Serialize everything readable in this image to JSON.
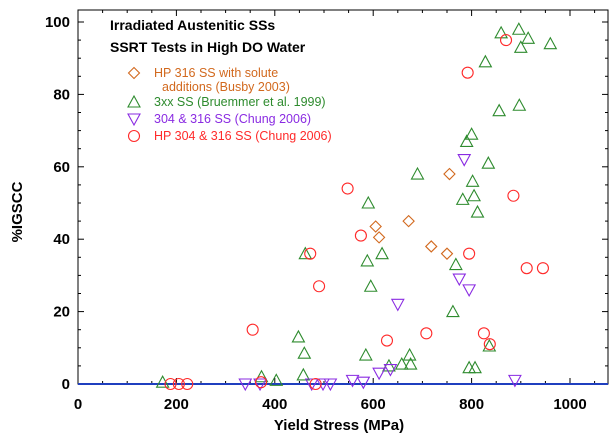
{
  "chart_data": {
    "type": "scatter",
    "title_lines": [
      "Irradiated Austenitic SSs",
      "SSRT Tests in High DO Water"
    ],
    "xlabel": "Yield Stress (MPa)",
    "ylabel": "%IGSCC",
    "xlim": [
      0,
      1100
    ],
    "ylim": [
      0,
      105
    ],
    "x_ticks": [
      0,
      200,
      400,
      600,
      800,
      1000
    ],
    "y_ticks": [
      0,
      20,
      40,
      60,
      80,
      100
    ],
    "x_tick_labels": [
      "0",
      "200",
      "400",
      "600",
      "800",
      "1000"
    ],
    "y_tick_labels": [
      "0",
      "20",
      "40",
      "60",
      "80",
      "100"
    ],
    "grid": false,
    "legend_position": "top-left",
    "series": [
      {
        "name": "HP 316 SS with solute additions (Busby 2003)",
        "legend_lines": [
          "HP 316 SS with solute",
          "additions (Busby 2003)"
        ],
        "marker": "diamond",
        "color": "#d2691e",
        "points": [
          [
            605,
            43.5
          ],
          [
            612,
            40.5
          ],
          [
            672,
            45
          ],
          [
            718,
            38
          ],
          [
            750,
            36
          ],
          [
            755,
            58
          ]
        ]
      },
      {
        "name": "3xx SS (Bruemmer et al. 1999)",
        "legend_lines": [
          "3xx SS (Bruemmer et al. 1999)"
        ],
        "marker": "triangle-up",
        "color": "#2e8b2e",
        "points": [
          [
            172,
            0.5
          ],
          [
            373,
            2
          ],
          [
            403,
            1
          ],
          [
            448,
            13
          ],
          [
            458,
            2.5
          ],
          [
            460,
            8.5
          ],
          [
            462,
            36
          ],
          [
            585,
            8
          ],
          [
            588,
            34
          ],
          [
            590,
            50
          ],
          [
            595,
            27
          ],
          [
            618,
            36
          ],
          [
            632,
            5
          ],
          [
            658,
            5.5
          ],
          [
            674,
            8
          ],
          [
            676,
            5.5
          ],
          [
            690,
            58
          ],
          [
            762,
            20
          ],
          [
            768,
            33
          ],
          [
            782,
            51
          ],
          [
            790,
            67
          ],
          [
            795,
            4.5
          ],
          [
            800,
            69
          ],
          [
            802,
            56
          ],
          [
            805,
            52
          ],
          [
            807,
            4.5
          ],
          [
            812,
            47.5
          ],
          [
            828,
            89
          ],
          [
            834,
            61
          ],
          [
            836,
            10.5
          ],
          [
            856,
            75.5
          ],
          [
            860,
            97
          ],
          [
            896,
            98
          ],
          [
            897,
            77
          ],
          [
            900,
            93
          ],
          [
            915,
            95.5
          ],
          [
            960,
            94
          ]
        ]
      },
      {
        "name": "304 & 316 SS (Chung 2006)",
        "legend_lines": [
          "304 & 316 SS (Chung 2006)"
        ],
        "marker": "triangle-down",
        "color": "#8a2be2",
        "points": [
          [
            340,
            0
          ],
          [
            370,
            0
          ],
          [
            475,
            0
          ],
          [
            498,
            0
          ],
          [
            513,
            0
          ],
          [
            558,
            1
          ],
          [
            580,
            0.5
          ],
          [
            612,
            3
          ],
          [
            635,
            4
          ],
          [
            650,
            22
          ],
          [
            775,
            29
          ],
          [
            785,
            62
          ],
          [
            795,
            26
          ],
          [
            888,
            1
          ]
        ]
      },
      {
        "name": "HP 304 & 316 SS (Chung 2006)",
        "legend_lines": [
          "HP 304 & 316 SS (Chung 2006)"
        ],
        "marker": "circle",
        "color": "#ff2a2a",
        "points": [
          [
            188,
            0
          ],
          [
            205,
            0
          ],
          [
            222,
            0
          ],
          [
            355,
            15
          ],
          [
            372,
            0.5
          ],
          [
            472,
            36
          ],
          [
            483,
            0
          ],
          [
            490,
            27
          ],
          [
            548,
            54
          ],
          [
            575,
            41
          ],
          [
            628,
            12
          ],
          [
            708,
            14
          ],
          [
            792,
            86
          ],
          [
            795,
            36
          ],
          [
            825,
            14
          ],
          [
            837,
            11
          ],
          [
            870,
            95
          ],
          [
            885,
            52
          ],
          [
            912,
            32
          ],
          [
            945,
            32
          ]
        ]
      }
    ]
  }
}
